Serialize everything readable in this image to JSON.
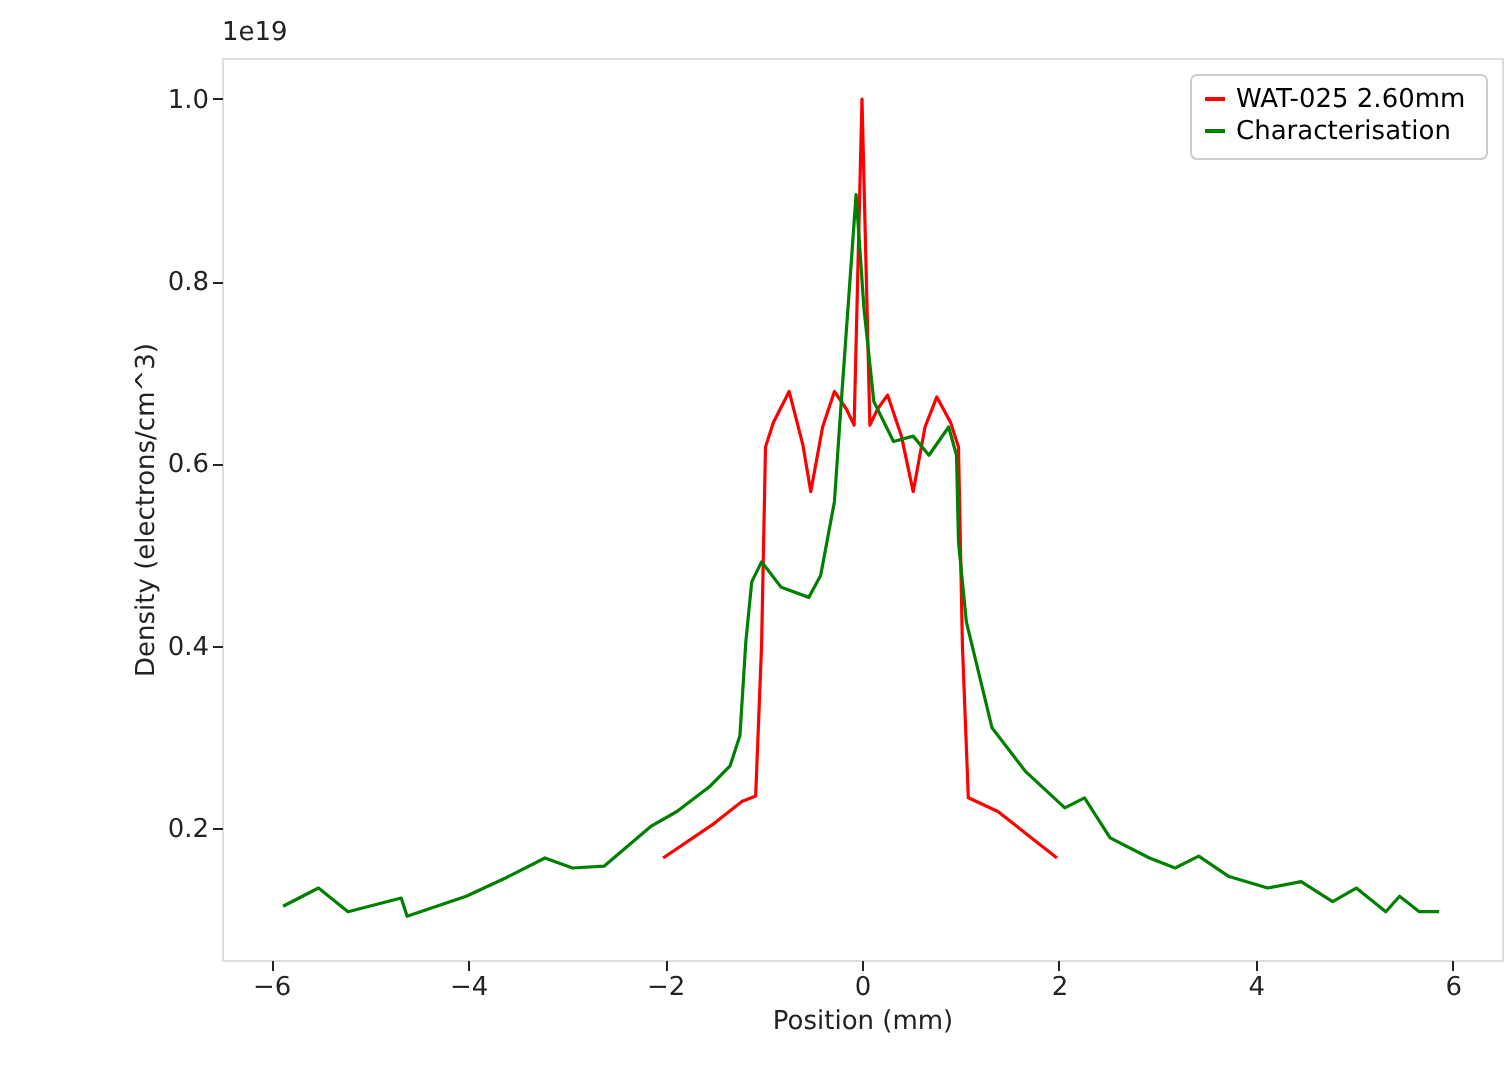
{
  "chart_data": {
    "type": "line",
    "xlabel": "Position (mm)",
    "ylabel": "Density (electrons/cm^3)",
    "annotations": [
      "1e19"
    ],
    "xlim": [
      -6.5,
      6.5
    ],
    "xticks": [
      {
        "value": -6,
        "label": "−6"
      },
      {
        "value": -4,
        "label": "−4"
      },
      {
        "value": -2,
        "label": "−2"
      },
      0,
      2,
      4,
      6
    ],
    "ylim": [
      0.055,
      1.045
    ],
    "yticks": [
      {
        "value": 0.2,
        "label": "0.2"
      },
      {
        "value": 0.4,
        "label": "0.4"
      },
      {
        "value": 0.6,
        "label": "0.6"
      },
      {
        "value": 0.8,
        "label": "0.8"
      },
      {
        "value": 1.0,
        "label": "1.0"
      }
    ],
    "grid": false,
    "legend": "top right",
    "marker": "none",
    "line_style": "solid",
    "series": [
      {
        "name": "WAT-025  2.60mm",
        "color": "#ff0000",
        "x": [
          -2.02,
          -1.5,
          -1.22,
          -1.08,
          -1.02,
          -0.98,
          -0.9,
          -0.74,
          -0.6,
          -0.52,
          -0.4,
          -0.28,
          -0.16,
          -0.08,
          0,
          0.08,
          0.16,
          0.26,
          0.4,
          0.52,
          0.64,
          0.76,
          0.9,
          0.98,
          1.02,
          1.08,
          1.38,
          1.98
        ],
        "values": [
          0.167,
          0.205,
          0.229,
          0.235,
          0.4,
          0.618,
          0.645,
          0.679,
          0.62,
          0.569,
          0.64,
          0.679,
          0.66,
          0.642,
          1.0,
          0.642,
          0.66,
          0.675,
          0.63,
          0.569,
          0.64,
          0.673,
          0.645,
          0.618,
          0.4,
          0.233,
          0.218,
          0.167
        ]
      },
      {
        "name": "Characterisation",
        "color": "#008000",
        "x": [
          -5.88,
          -5.52,
          -5.22,
          -4.68,
          -4.62,
          -4.02,
          -3.62,
          -3.22,
          -2.94,
          -2.62,
          -2.14,
          -1.88,
          -1.54,
          -1.34,
          -1.24,
          -1.18,
          -1.12,
          -1.02,
          -0.82,
          -0.54,
          -0.42,
          -0.28,
          -0.22,
          -0.06,
          0.02,
          0.12,
          0.32,
          0.52,
          0.68,
          0.88,
          0.96,
          0.98,
          1.06,
          1.32,
          1.66,
          2.06,
          2.26,
          2.52,
          2.92,
          3.18,
          3.42,
          3.72,
          4.12,
          4.46,
          4.78,
          5.02,
          5.32,
          5.46,
          5.66,
          5.86
        ],
        "values": [
          0.114,
          0.134,
          0.108,
          0.123,
          0.103,
          0.125,
          0.145,
          0.167,
          0.156,
          0.158,
          0.202,
          0.218,
          0.246,
          0.268,
          0.301,
          0.404,
          0.47,
          0.492,
          0.464,
          0.453,
          0.477,
          0.558,
          0.653,
          0.895,
          0.77,
          0.668,
          0.624,
          0.63,
          0.609,
          0.64,
          0.609,
          0.514,
          0.426,
          0.31,
          0.262,
          0.222,
          0.233,
          0.189,
          0.167,
          0.156,
          0.169,
          0.147,
          0.134,
          0.141,
          0.119,
          0.134,
          0.108,
          0.125,
          0.108,
          0.108
        ]
      }
    ]
  }
}
